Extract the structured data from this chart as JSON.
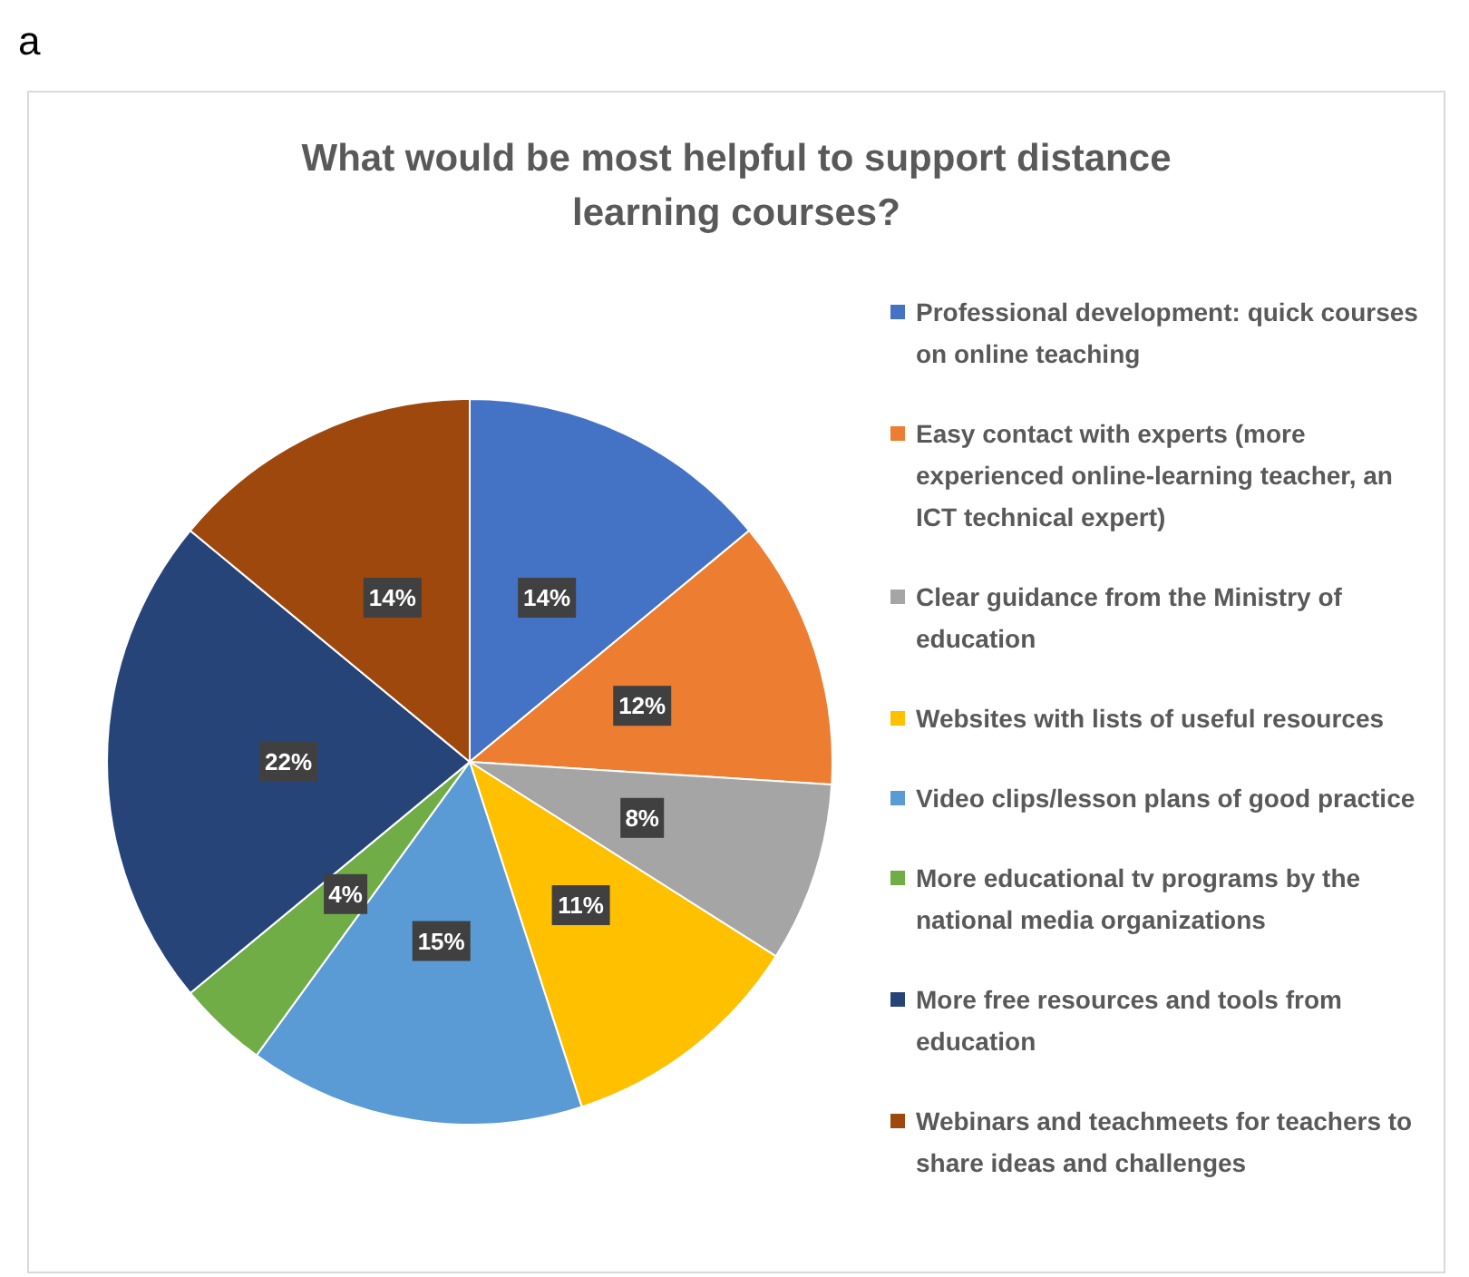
{
  "chart_data": {
    "type": "pie",
    "title": "What would be most helpful to support distance learning courses?",
    "annotations": [
      "a"
    ],
    "categories": [
      "Professional development: quick courses on online teaching",
      "Easy contact with experts (more experienced online-learning teacher, an ICT technical expert)",
      "Clear guidance from the Ministry of education",
      "Websites with lists of useful resources",
      "Video clips/lesson plans of good practice",
      "More educational tv programs by the national media organizations",
      "More free resources and tools from education",
      "Webinars and teachmeets for teachers to share ideas and challenges"
    ],
    "values": [
      14,
      12,
      8,
      11,
      15,
      4,
      22,
      14
    ],
    "value_labels": [
      "14%",
      "12%",
      "8%",
      "11%",
      "15%",
      "4%",
      "22%",
      "14%"
    ],
    "colors": [
      "#4472c4",
      "#ed7d31",
      "#a5a5a5",
      "#ffc000",
      "#5b9bd5",
      "#70ad47",
      "#264478",
      "#9e480e"
    ],
    "legend": "right"
  }
}
